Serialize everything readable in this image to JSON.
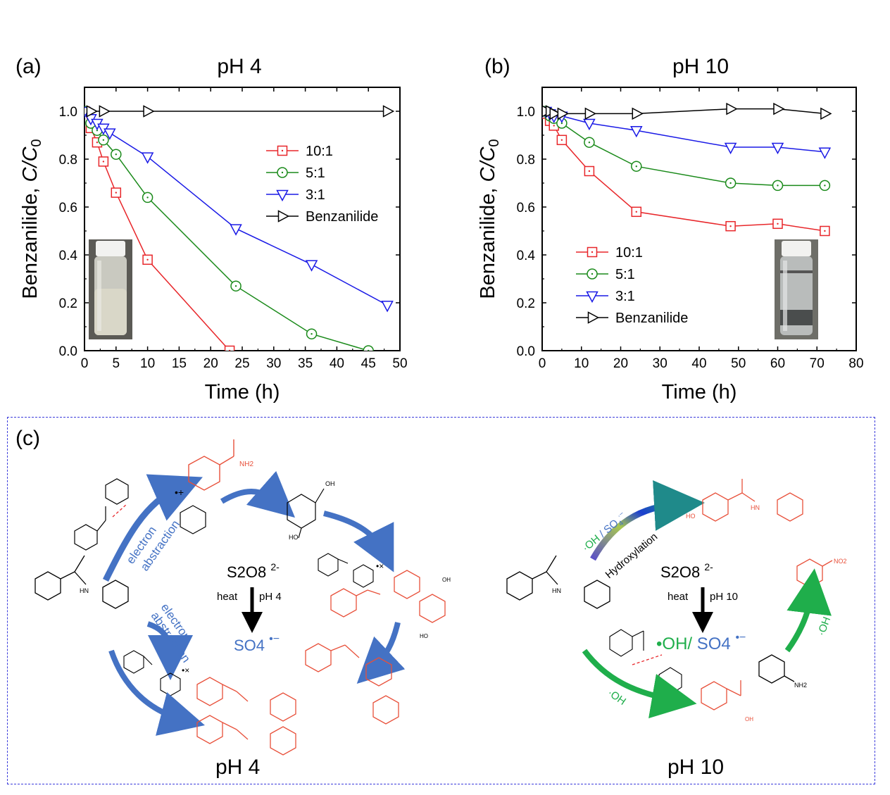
{
  "panels": {
    "a_label": "(a)",
    "b_label": "(b)",
    "c_label": "(c)",
    "a_title": "pH 4",
    "b_title": "pH 10"
  },
  "chart_data": [
    {
      "type": "line",
      "panel": "a",
      "title": "pH 4",
      "xlabel": "Time (h)",
      "ylabel": "Benzanilide, C/C0",
      "xlim": [
        0,
        50
      ],
      "ylim": [
        0,
        1.1
      ],
      "xticks": [
        0,
        5,
        10,
        15,
        20,
        25,
        30,
        35,
        40,
        45,
        50
      ],
      "yticks": [
        0.0,
        0.2,
        0.4,
        0.6,
        0.8,
        1.0
      ],
      "legend_position": "upper-right",
      "series": [
        {
          "name": "10:1",
          "color": "#e8262a",
          "marker": "square",
          "x": [
            0,
            1,
            2,
            3,
            5,
            10,
            23
          ],
          "y": [
            1.0,
            0.93,
            0.87,
            0.79,
            0.66,
            0.38,
            0.0
          ]
        },
        {
          "name": "5:1",
          "color": "#1a8a1a",
          "marker": "circle",
          "x": [
            0,
            1,
            2,
            3,
            5,
            10,
            24,
            36,
            45
          ],
          "y": [
            1.0,
            0.95,
            0.92,
            0.88,
            0.82,
            0.64,
            0.27,
            0.07,
            0.0
          ]
        },
        {
          "name": "3:1",
          "color": "#1a1ae6",
          "marker": "triangle-down",
          "x": [
            0,
            1,
            2,
            3,
            4,
            10,
            24,
            36,
            48
          ],
          "y": [
            1.0,
            0.97,
            0.95,
            0.93,
            0.91,
            0.81,
            0.51,
            0.36,
            0.19
          ]
        },
        {
          "name": "Benzanilide",
          "color": "#000000",
          "marker": "triangle-right",
          "x": [
            1,
            3,
            10,
            48
          ],
          "y": [
            1.0,
            1.0,
            1.0,
            1.0
          ]
        }
      ]
    },
    {
      "type": "line",
      "panel": "b",
      "title": "pH 10",
      "xlabel": "Time (h)",
      "ylabel": "Benzanilide, C/C0",
      "xlim": [
        0,
        80
      ],
      "ylim": [
        0,
        1.1
      ],
      "xticks": [
        0,
        10,
        20,
        30,
        40,
        50,
        60,
        70,
        80
      ],
      "yticks": [
        0.0,
        0.2,
        0.4,
        0.6,
        0.8,
        1.0
      ],
      "legend_position": "lower-left",
      "series": [
        {
          "name": "10:1",
          "color": "#e8262a",
          "marker": "square",
          "x": [
            0,
            1,
            2,
            3,
            5,
            12,
            24,
            48,
            60,
            72
          ],
          "y": [
            1.0,
            0.99,
            0.96,
            0.94,
            0.88,
            0.75,
            0.58,
            0.52,
            0.53,
            0.5
          ]
        },
        {
          "name": "5:1",
          "color": "#1a8a1a",
          "marker": "circle",
          "x": [
            0,
            1,
            2,
            3,
            5,
            12,
            24,
            48,
            60,
            72
          ],
          "y": [
            1.0,
            1.0,
            0.98,
            0.97,
            0.95,
            0.87,
            0.77,
            0.7,
            0.69,
            0.69
          ]
        },
        {
          "name": "3:1",
          "color": "#1a1ae6",
          "marker": "triangle-down",
          "x": [
            0,
            1,
            2,
            3,
            5,
            12,
            24,
            48,
            60,
            72
          ],
          "y": [
            1.0,
            1.0,
            0.99,
            0.98,
            0.98,
            0.95,
            0.92,
            0.85,
            0.85,
            0.83
          ]
        },
        {
          "name": "Benzanilide",
          "color": "#000000",
          "marker": "triangle-right",
          "x": [
            0,
            1,
            2,
            3,
            5,
            12,
            24,
            48,
            60,
            72
          ],
          "y": [
            1.0,
            1.0,
            1.0,
            0.99,
            0.99,
            0.99,
            0.99,
            1.01,
            1.01,
            0.99
          ]
        }
      ]
    }
  ],
  "scheme": {
    "left": {
      "oxidant": "S2O8",
      "oxidant_charge": "2-",
      "cond_left": "heat",
      "cond_right": "pH 4",
      "radical": "SO4",
      "radical_mark": "•−",
      "arrow_top_label_1": "electron",
      "arrow_top_label_2": "abstraction",
      "arrow_bottom_label_1": "electron",
      "arrow_bottom_label_2": "abstraction",
      "footer": "pH 4",
      "nh2": "NH2",
      "oh": "OH",
      "ho": "HO"
    },
    "right": {
      "oxidant": "S2O8",
      "oxidant_charge": "2-",
      "cond_left": "heat",
      "cond_right": "pH 10",
      "radical_oh": "•OH/",
      "radical_so4": "SO4",
      "radical_mark": "•−",
      "top_arrow_radicals": "·OH / SO4·−",
      "top_arrow_label": "Hydroxylation",
      "right_arrow_label": "·OH",
      "bottom_arrow_label": "·OH",
      "footer": "pH 10",
      "no2": "NO2",
      "nh2": "NH2",
      "ho": "HO",
      "hn": "HN",
      "oh": "OH"
    }
  },
  "colors": {
    "red": "#e8262a",
    "green": "#1a8a1a",
    "blue": "#1a1ae6",
    "scheme_blue": "#4472c4",
    "scheme_green": "#1fae4b",
    "product_red": "#e8503a"
  }
}
